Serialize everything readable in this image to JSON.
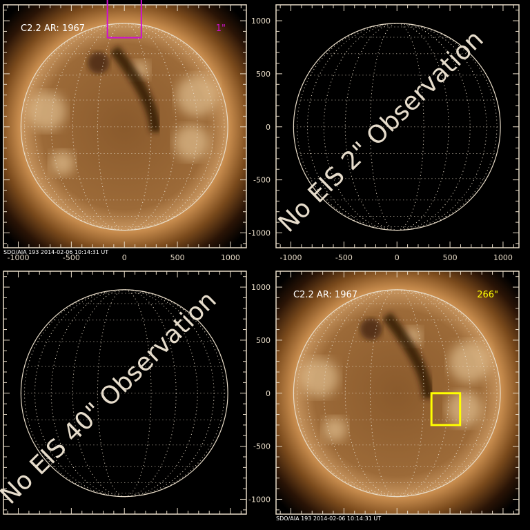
{
  "figure": {
    "panels": [
      {
        "id": "tl",
        "has_image": true,
        "label": "C2.2 AR: 1967",
        "box_label": "1\"",
        "box_color": "#d010d0",
        "footer": "SDO/AIA 193   2014-02-06 10:14:31 UT",
        "no_obs_text": "",
        "box_center": [
          0,
          1040
        ],
        "box_size": [
          320,
          400
        ],
        "show_x_labels": true,
        "show_y_labels": false
      },
      {
        "id": "tr",
        "has_image": false,
        "label": "",
        "box_label": "",
        "footer": "",
        "no_obs_text": "No EIS 2\" Observation",
        "show_x_labels": true,
        "show_y_labels": true
      },
      {
        "id": "bl",
        "has_image": false,
        "label": "",
        "box_label": "",
        "footer": "",
        "no_obs_text": "No EIS 40\" Observation",
        "show_x_labels": false,
        "show_y_labels": false
      },
      {
        "id": "br",
        "has_image": true,
        "label": "C2.2 AR: 1967",
        "box_label": "266\"",
        "box_color": "#ffff00",
        "footer": "SDO/AIA 193   2014-02-06 10:14:31 UT",
        "no_obs_text": "",
        "box_center": [
          460,
          -150
        ],
        "box_size": [
          270,
          300
        ],
        "show_x_labels": false,
        "show_y_labels": true
      }
    ],
    "axis_range": [
      -1140,
      1150
    ],
    "ticks": [
      "-1000",
      "-500",
      "0",
      "500",
      "1000"
    ],
    "colors": {
      "frame": "#e8dcc8",
      "text_overlay": "#e6dccb",
      "label": "#ffffff"
    }
  }
}
